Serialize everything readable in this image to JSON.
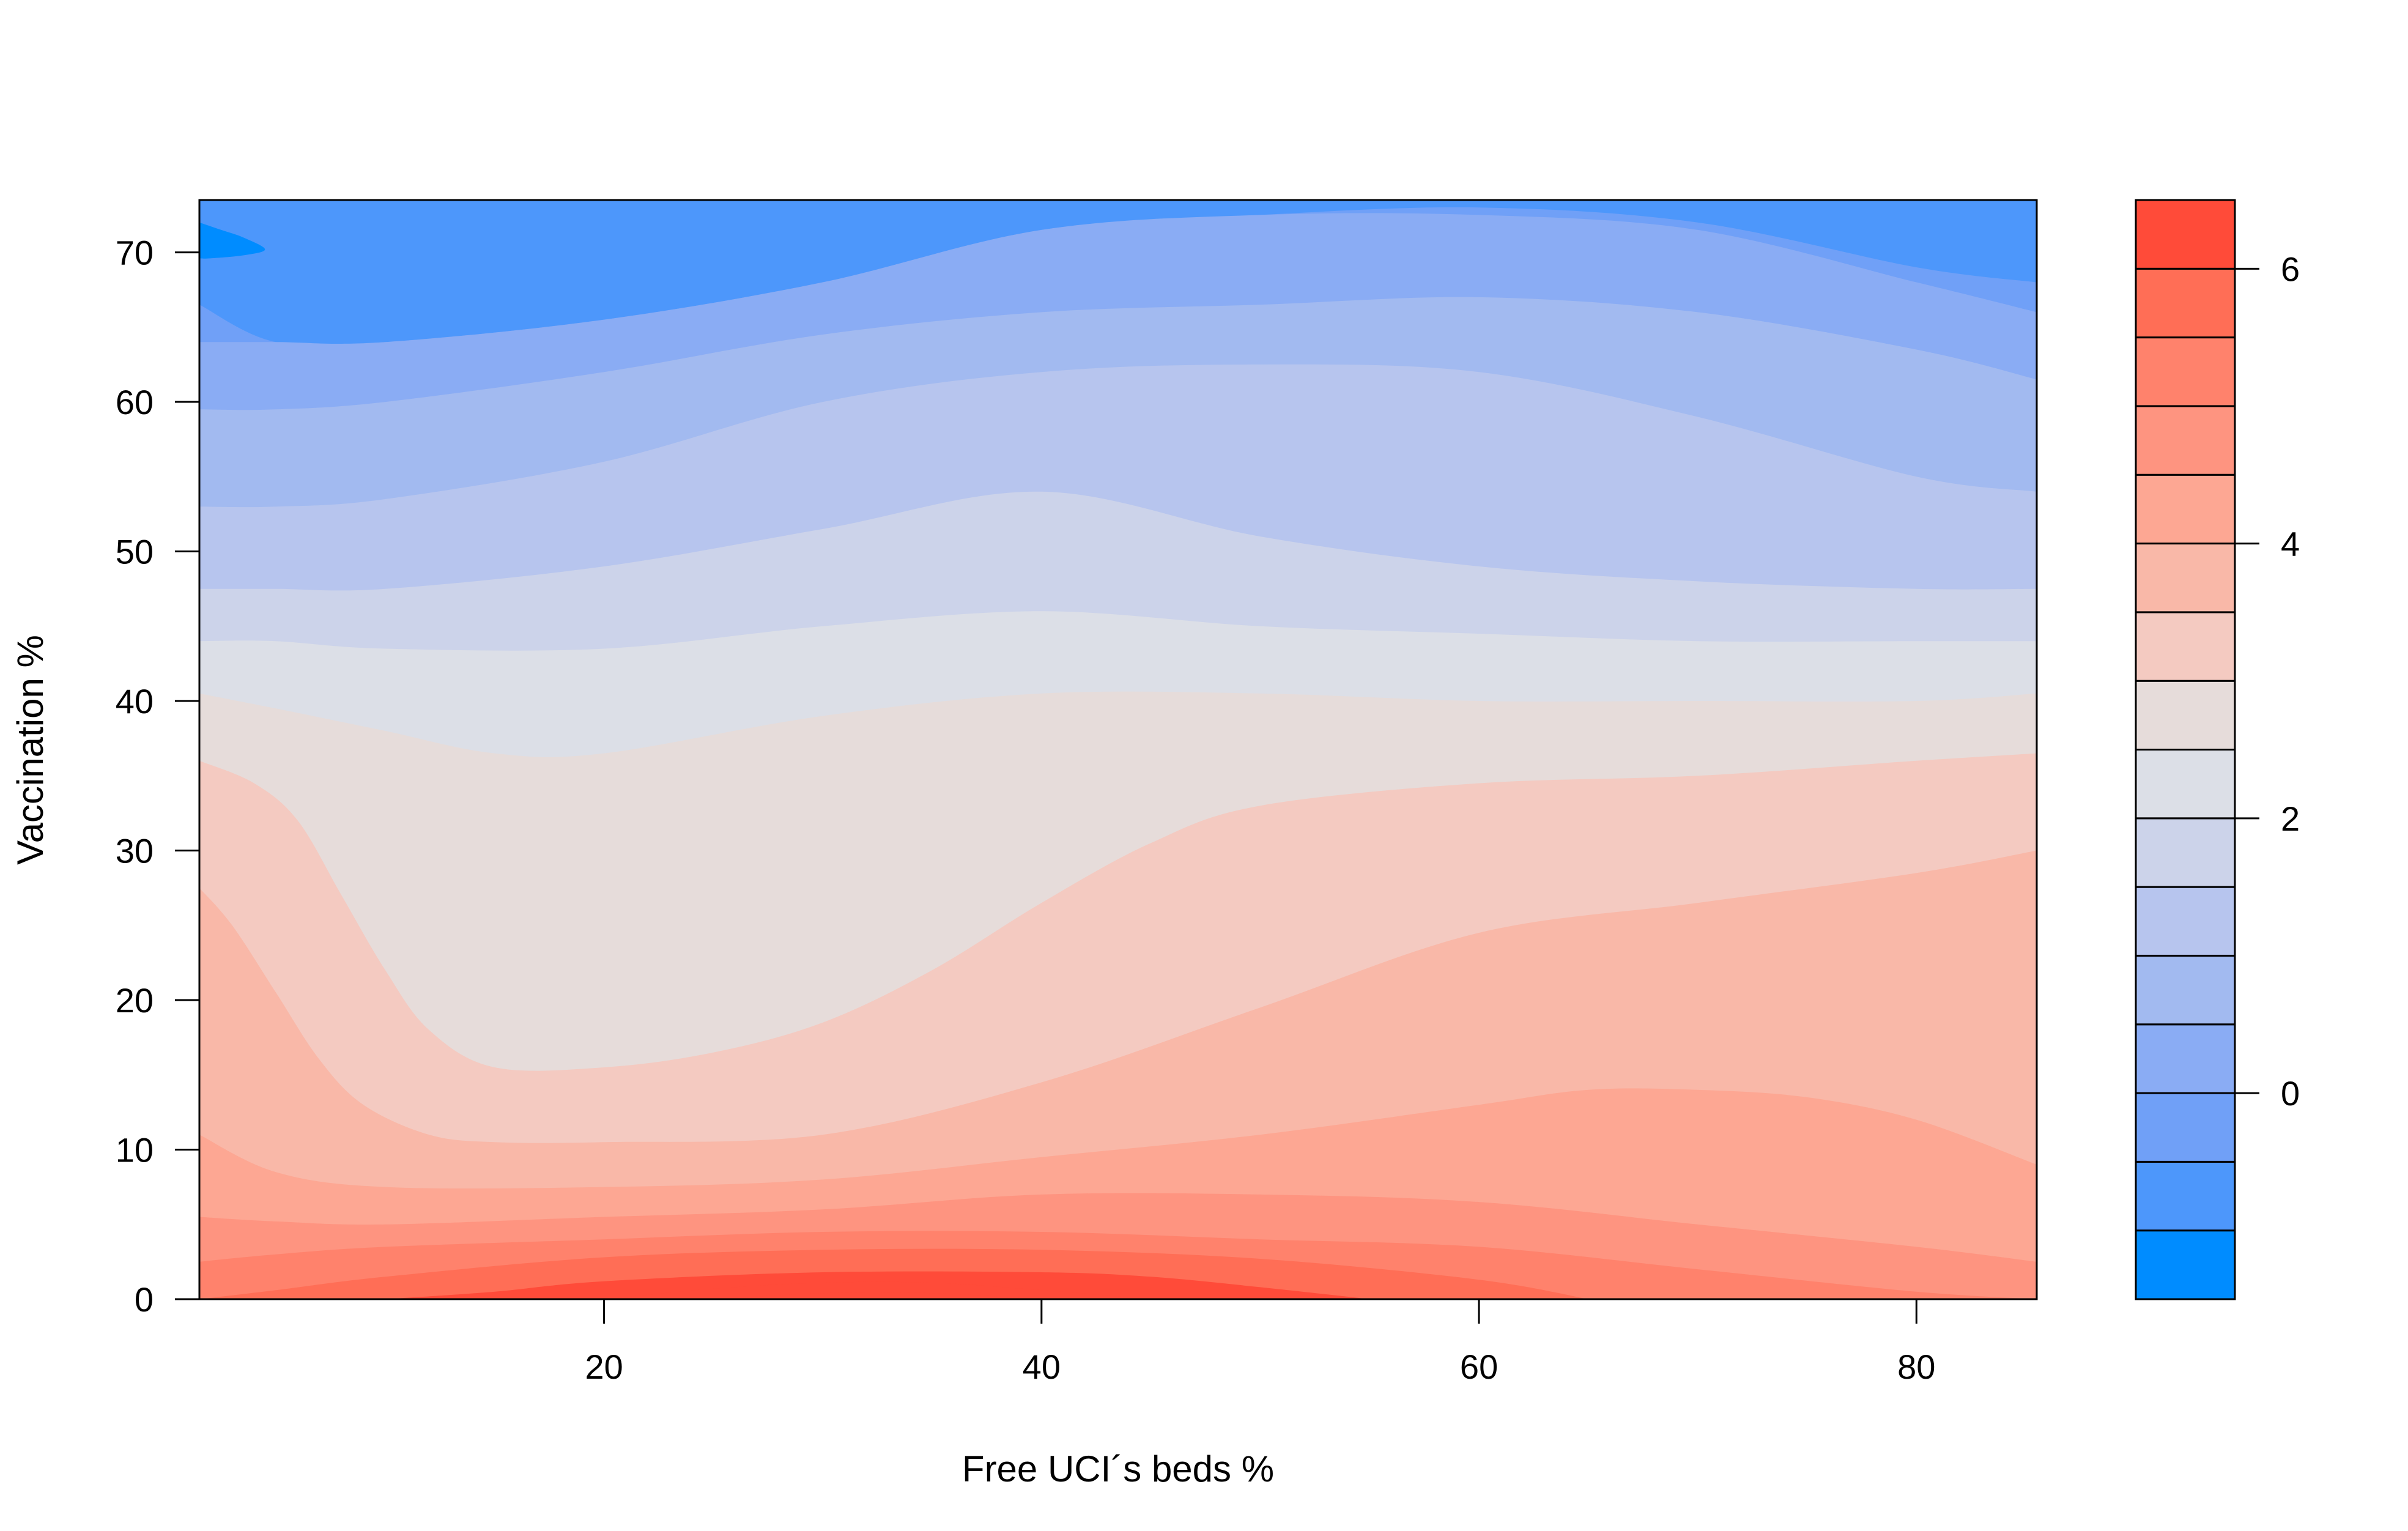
{
  "chart_data": {
    "type": "filled-contour",
    "title": "",
    "xlabel": "Free UCI´s beds %",
    "ylabel": "Vaccination %",
    "xlim": [
      1.5,
      85.5
    ],
    "ylim": [
      0,
      73.5
    ],
    "x_ticks": [
      "20",
      "40",
      "60",
      "80"
    ],
    "y_ticks": [
      "0",
      "10",
      "20",
      "30",
      "40",
      "50",
      "60",
      "70"
    ],
    "colorbar": {
      "range": [
        -1.5,
        6.5
      ],
      "ticks": [
        "0",
        "2",
        "4",
        "6"
      ],
      "levels": [
        -1.5,
        -1.0,
        -0.5,
        0.0,
        0.5,
        1.0,
        1.5,
        2.0,
        2.5,
        3.0,
        3.5,
        4.0,
        4.5,
        5.0,
        5.5,
        6.0,
        6.5
      ],
      "colors": [
        "#008cff",
        "#4d97fb",
        "#70a0f7",
        "#8aacf4",
        "#a2baf0",
        "#b7c5ee",
        "#ccd3ea",
        "#dcdfe7",
        "#e6dcda",
        "#f4cac1",
        "#f9b8a8",
        "#fda793",
        "#fe9480",
        "#ff826c",
        "#ff6e56",
        "#ff4b39"
      ]
    },
    "contour_lines": [
      {
        "x": [
          1.5,
          5,
          10,
          20,
          30,
          40,
          50,
          60,
          70,
          80,
          85.5
        ],
        "y": [
          66.5,
          64,
          64,
          65.5,
          68,
          71.5,
          72.5,
          73,
          72,
          69,
          68
        ]
      },
      {
        "x": [
          1.5,
          5,
          10,
          20,
          30,
          40,
          50,
          60,
          70,
          80,
          85.5
        ],
        "y": [
          64,
          64,
          64,
          65.5,
          68,
          71.5,
          72.5,
          72.5,
          71.5,
          68,
          66
        ]
      },
      {
        "x": [
          1.5,
          5,
          10,
          20,
          30,
          40,
          50,
          60,
          70,
          80,
          85.5
        ],
        "y": [
          59.5,
          59.5,
          60,
          62,
          64.5,
          66,
          66.5,
          67,
          66,
          63.5,
          61.5
        ]
      },
      {
        "x": [
          1.5,
          5,
          10,
          20,
          30,
          40,
          50,
          60,
          70,
          80,
          85.5
        ],
        "y": [
          53,
          53,
          53.5,
          56,
          60,
          62,
          62.5,
          62,
          59,
          55,
          54
        ]
      },
      {
        "x": [
          1.5,
          5,
          10,
          20,
          30,
          40,
          50,
          60,
          70,
          80,
          85.5
        ],
        "y": [
          47.5,
          47.5,
          47.5,
          49,
          51.5,
          54,
          51,
          49,
          48,
          47.5,
          47.5
        ]
      },
      {
        "x": [
          1.5,
          5,
          10,
          20,
          30,
          40,
          50,
          60,
          70,
          80,
          85.5
        ],
        "y": [
          44,
          44,
          43.5,
          43.5,
          45,
          46,
          45,
          44.5,
          44,
          44,
          44
        ]
      },
      {
        "x": [
          1.5,
          5,
          10,
          15,
          20,
          30,
          40,
          50,
          60,
          70,
          80,
          85.5
        ],
        "y": [
          40.5,
          39.5,
          38,
          36.5,
          36.5,
          39,
          40.5,
          40.5,
          40,
          40,
          40,
          40.5
        ]
      },
      {
        "x": [
          1.5,
          4,
          6,
          8,
          10,
          12,
          15,
          20,
          25,
          30,
          35,
          40,
          45,
          50,
          60,
          70,
          80,
          85.5
        ],
        "y": [
          36,
          34.5,
          32,
          27,
          22,
          18,
          15.5,
          15.5,
          16.5,
          18.5,
          22,
          26.5,
          30.5,
          33,
          34.5,
          35,
          36,
          36.5
        ]
      },
      {
        "x": [
          1.5,
          3,
          5,
          7,
          9,
          12,
          15,
          20,
          30,
          40,
          50,
          60,
          70,
          80,
          85.5
        ],
        "y": [
          27.5,
          25,
          20.5,
          16,
          13,
          11,
          10.5,
          10.5,
          11,
          14.5,
          19.5,
          24.5,
          26.5,
          28.5,
          30
        ]
      },
      {
        "x": [
          1.5,
          5,
          10,
          20,
          30,
          40,
          50,
          60,
          65,
          70,
          75,
          80,
          85.5
        ],
        "y": [
          11,
          8.5,
          7.5,
          7.5,
          8,
          9.5,
          11,
          13,
          14,
          14,
          13.5,
          12,
          9
        ]
      },
      {
        "x": [
          1.5,
          5,
          10,
          20,
          30,
          40,
          50,
          60,
          70,
          80,
          85.5
        ],
        "y": [
          5.5,
          5.2,
          5,
          5.5,
          6,
          7,
          7,
          6.5,
          5,
          3.5,
          2.5
        ]
      },
      {
        "x": [
          1.5,
          5,
          10,
          20,
          30,
          40,
          50,
          60,
          70,
          80,
          85.5
        ],
        "y": [
          2.5,
          3,
          3.5,
          4,
          4.5,
          4.5,
          4,
          3.5,
          2,
          0.5,
          0
        ]
      },
      {
        "x": [
          1.5,
          5,
          10,
          20,
          30,
          40,
          50,
          60,
          65
        ],
        "y": [
          0,
          0.6,
          1.5,
          2.8,
          3.3,
          3.3,
          2.7,
          1.3,
          0
        ]
      },
      {
        "x": [
          10,
          15,
          20,
          30,
          40,
          45,
          50,
          55
        ],
        "y": [
          0,
          0.5,
          1.2,
          1.8,
          1.8,
          1.5,
          0.8,
          0
        ]
      },
      {
        "x": [
          20,
          25,
          30,
          35,
          40,
          45
        ],
        "y": [
          0,
          0.7,
          1.1,
          1.1,
          0.6,
          0
        ]
      },
      {
        "x": [
          25,
          30,
          35,
          40
        ],
        "y": [
          0,
          0.4,
          0.4,
          0
        ]
      }
    ],
    "peak_patches": [
      {
        "x": [
          1.5,
          2.5,
          3.5,
          4.5,
          3.5,
          2,
          1.5
        ],
        "y": [
          72,
          71.5,
          71,
          70.2,
          69.8,
          69.6,
          69.6
        ]
      }
    ]
  }
}
